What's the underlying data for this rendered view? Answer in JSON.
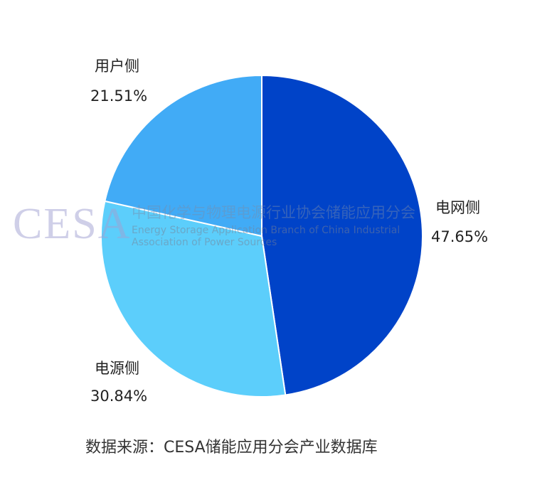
{
  "chart_data": {
    "type": "pie",
    "start": "top",
    "direction": "clockwise",
    "slices": [
      {
        "label": "电网侧",
        "value": 47.65,
        "display": "47.65%",
        "color": "#0043c8"
      },
      {
        "label": "电源侧",
        "value": 30.84,
        "display": "30.84%",
        "color": "#5ccefb"
      },
      {
        "label": "用户侧",
        "value": 21.51,
        "display": "21.51%",
        "color": "#41abf6"
      }
    ]
  },
  "watermark": {
    "logo": "CESA",
    "cn": "中国化学与物理电源行业协会储能应用分会",
    "en": "Energy Storage Application Branch of China Industrial Association of Power Sources"
  },
  "caption": "数据来源：CESA储能应用分会产业数据库"
}
